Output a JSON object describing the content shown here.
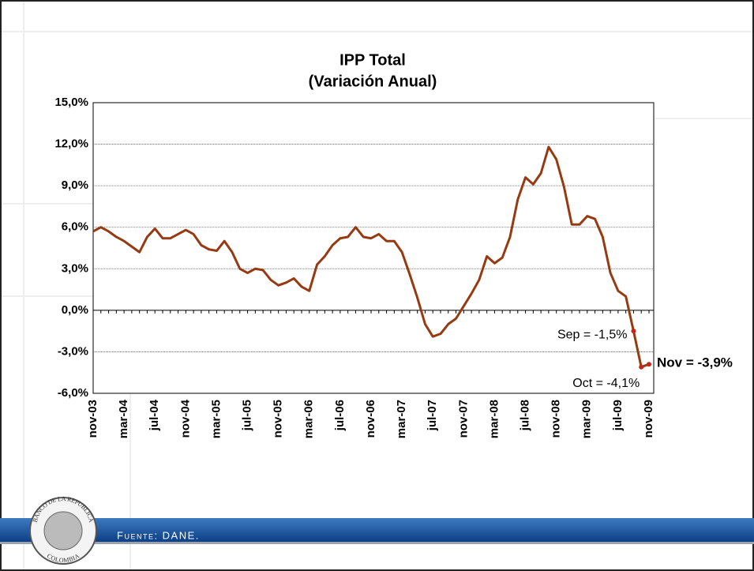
{
  "chart_data": {
    "type": "line",
    "title": [
      "IPP Total",
      "(Variación Anual)"
    ],
    "categories": [
      "nov-03",
      null,
      null,
      null,
      "mar-04",
      null,
      null,
      null,
      "jul-04",
      null,
      null,
      null,
      "nov-04",
      null,
      null,
      null,
      "mar-05",
      null,
      null,
      null,
      "jul-05",
      null,
      null,
      null,
      "nov-05",
      null,
      null,
      null,
      "mar-06",
      null,
      null,
      null,
      "jul-06",
      null,
      null,
      null,
      "nov-06",
      null,
      null,
      null,
      "mar-07",
      null,
      null,
      null,
      "jul-07",
      null,
      null,
      null,
      "nov-07",
      null,
      null,
      null,
      "mar-08",
      null,
      null,
      null,
      "jul-08",
      null,
      null,
      null,
      "nov-08",
      null,
      null,
      null,
      "mar-09",
      null,
      null,
      null,
      "jul-09",
      null,
      null,
      null,
      "nov-09"
    ],
    "series": [
      {
        "name": "IPP Total",
        "color": "#963a12",
        "values": [
          5.7,
          6.0,
          5.7,
          5.3,
          5.0,
          4.6,
          4.2,
          5.3,
          5.9,
          5.2,
          5.2,
          5.5,
          5.8,
          5.5,
          4.7,
          4.4,
          4.3,
          5.0,
          4.2,
          3.0,
          2.7,
          3.0,
          2.9,
          2.2,
          1.8,
          2.0,
          2.3,
          1.7,
          1.4,
          3.3,
          3.9,
          4.7,
          5.2,
          5.3,
          6.0,
          5.3,
          5.2,
          5.5,
          5.0,
          5.0,
          4.2,
          2.6,
          0.9,
          -1.0,
          -1.9,
          -1.7,
          -1.0,
          -0.6,
          0.3,
          1.2,
          2.2,
          3.9,
          3.4,
          3.8,
          5.3,
          8.0,
          9.6,
          9.1,
          9.9,
          11.8,
          10.9,
          8.9,
          6.2,
          6.2,
          6.8,
          6.6,
          5.3,
          2.7,
          1.4,
          1.0,
          -1.5,
          -4.1,
          -3.9
        ],
        "value_labels": {
          "70": "Sep = -1,5%",
          "71": "Oct = -4,1%",
          "72": "Nov = -3,9%"
        }
      }
    ],
    "ylim": [
      -6,
      15
    ],
    "yticks": [
      {
        "value": -6,
        "label": "-6,0%"
      },
      {
        "value": -3,
        "label": "-3,0%"
      },
      {
        "value": 0,
        "label": "0,0%"
      },
      {
        "value": 3,
        "label": "3,0%"
      },
      {
        "value": 6,
        "label": "6,0%"
      },
      {
        "value": 9,
        "label": "9,0%"
      },
      {
        "value": 12,
        "label": "12,0%"
      },
      {
        "value": 15,
        "label": "15,0%"
      }
    ],
    "grid": true,
    "highlight_color": "#c0281e"
  },
  "footer": {
    "source": "Fuente: DANE.",
    "logo_top": "BANCO DE LA REPUBLICA",
    "logo_bottom": "COLOMBIA"
  }
}
